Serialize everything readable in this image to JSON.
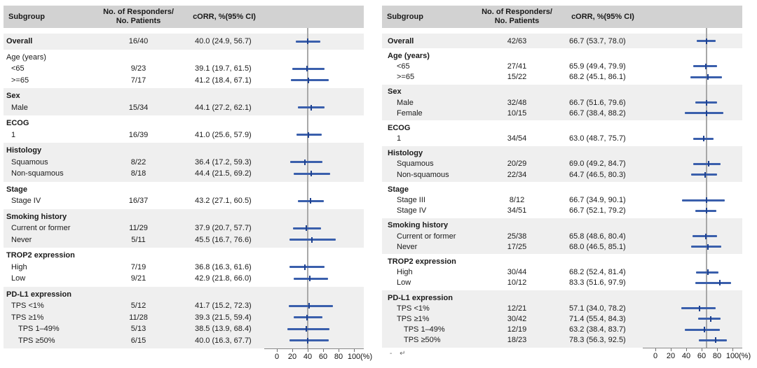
{
  "stray_mark": "- ↵",
  "chart_data": [
    {
      "panel": "left",
      "type": "forest",
      "columns": {
        "subgroup": "Subgroup",
        "responders": "No. of Responders/\nNo. Patients",
        "corr": "cORR, %(95% CI)"
      },
      "axis": {
        "ticks": [
          0,
          20,
          40,
          60,
          80,
          100
        ],
        "unit": "(%)",
        "xlim": [
          0,
          100
        ]
      },
      "ref_line": 40.0,
      "sections": [
        {
          "label": "Overall",
          "bold": true,
          "band": "gray",
          "data": {
            "n": "16/40",
            "ci": "40.0 (24.9, 56.7)",
            "est": 40.0,
            "lo": 24.9,
            "hi": 56.7
          }
        },
        {
          "label": "Age (years)",
          "bold": false,
          "band": "white",
          "items": [
            {
              "label": "<65",
              "n": "9/23",
              "ci": "39.1 (19.7, 61.5)",
              "est": 39.1,
              "lo": 19.7,
              "hi": 61.5
            },
            {
              "label": ">=65",
              "n": "7/17",
              "ci": "41.2 (18.4, 67.1)",
              "est": 41.2,
              "lo": 18.4,
              "hi": 67.1
            }
          ]
        },
        {
          "label": "Sex",
          "bold": true,
          "band": "gray",
          "items": [
            {
              "label": "Male",
              "n": "15/34",
              "ci": "44.1 (27.2, 62.1)",
              "est": 44.1,
              "lo": 27.2,
              "hi": 62.1
            }
          ]
        },
        {
          "label": "ECOG",
          "bold": true,
          "band": "white",
          "items": [
            {
              "label": "1",
              "n": "16/39",
              "ci": "41.0 (25.6, 57.9)",
              "est": 41.0,
              "lo": 25.6,
              "hi": 57.9
            }
          ]
        },
        {
          "label": "Histology",
          "bold": true,
          "band": "gray",
          "items": [
            {
              "label": "Squamous",
              "n": "8/22",
              "ci": "36.4 (17.2, 59.3)",
              "est": 36.4,
              "lo": 17.2,
              "hi": 59.3
            },
            {
              "label": "Non-squamous",
              "n": "8/18",
              "ci": "44.4 (21.5, 69.2)",
              "est": 44.4,
              "lo": 21.5,
              "hi": 69.2
            }
          ]
        },
        {
          "label": "Stage",
          "bold": true,
          "band": "white",
          "items": [
            {
              "label": "Stage IV",
              "n": "16/37",
              "ci": "43.2 (27.1, 60.5)",
              "est": 43.2,
              "lo": 27.1,
              "hi": 60.5
            }
          ]
        },
        {
          "label": "Smoking history",
          "bold": true,
          "band": "gray",
          "items": [
            {
              "label": "Current or former",
              "n": "11/29",
              "ci": "37.9 (20.7, 57.7)",
              "est": 37.9,
              "lo": 20.7,
              "hi": 57.7
            },
            {
              "label": "Never",
              "n": "5/11",
              "ci": "45.5 (16.7, 76.6)",
              "est": 45.5,
              "lo": 16.7,
              "hi": 76.6
            }
          ]
        },
        {
          "label": "TROP2 expression",
          "bold": true,
          "band": "white",
          "items": [
            {
              "label": "High",
              "n": "7/19",
              "ci": "36.8 (16.3, 61.6)",
              "est": 36.8,
              "lo": 16.3,
              "hi": 61.6
            },
            {
              "label": "Low",
              "n": "9/21",
              "ci": "42.9 (21.8, 66.0)",
              "est": 42.9,
              "lo": 21.8,
              "hi": 66.0
            }
          ]
        },
        {
          "label": "PD-L1 expression",
          "bold": true,
          "band": "gray",
          "items": [
            {
              "label": "TPS <1%",
              "n": "5/12",
              "ci": "41.7 (15.2, 72.3)",
              "est": 41.7,
              "lo": 15.2,
              "hi": 72.3
            },
            {
              "label": "TPS ≥1%",
              "n": "11/28",
              "ci": "39.3 (21.5, 59.4)",
              "est": 39.3,
              "lo": 21.5,
              "hi": 59.4
            },
            {
              "label": "TPS 1–49%",
              "indent": 2,
              "n": "5/13",
              "ci": "38.5 (13.9, 68.4)",
              "est": 38.5,
              "lo": 13.9,
              "hi": 68.4
            },
            {
              "label": "TPS ≥50%",
              "indent": 2,
              "n": "6/15",
              "ci": "40.0 (16.3, 67.7)",
              "est": 40.0,
              "lo": 16.3,
              "hi": 67.7
            }
          ]
        }
      ]
    },
    {
      "panel": "right",
      "type": "forest",
      "columns": {
        "subgroup": "Subgroup",
        "responders": "No. of Responders/\nNo. Patients",
        "corr": "cORR, %(95% CI)"
      },
      "axis": {
        "ticks": [
          0,
          20,
          40,
          60,
          80,
          100
        ],
        "unit": "(%)",
        "xlim": [
          0,
          100
        ]
      },
      "ref_line": 66.7,
      "sections": [
        {
          "label": "Overall",
          "bold": true,
          "band": "gray",
          "data": {
            "n": "42/63",
            "ci": "66.7 (53.7, 78.0)",
            "est": 66.7,
            "lo": 53.7,
            "hi": 78.0
          }
        },
        {
          "label": "Age (years)",
          "bold": true,
          "band": "white",
          "items": [
            {
              "label": "<65",
              "n": "27/41",
              "ci": "65.9 (49.4, 79.9)",
              "est": 65.9,
              "lo": 49.4,
              "hi": 79.9
            },
            {
              "label": ">=65",
              "n": "15/22",
              "ci": "68.2 (45.1, 86.1)",
              "est": 68.2,
              "lo": 45.1,
              "hi": 86.1
            }
          ]
        },
        {
          "label": "Sex",
          "bold": true,
          "band": "gray",
          "items": [
            {
              "label": "Male",
              "n": "32/48",
              "ci": "66.7 (51.6, 79.6)",
              "est": 66.7,
              "lo": 51.6,
              "hi": 79.6
            },
            {
              "label": "Female",
              "n": "10/15",
              "ci": "66.7 (38.4, 88.2)",
              "est": 66.7,
              "lo": 38.4,
              "hi": 88.2
            }
          ]
        },
        {
          "label": "ECOG",
          "bold": true,
          "band": "white",
          "items": [
            {
              "label": "1",
              "n": "34/54",
              "ci": "63.0 (48.7, 75.7)",
              "est": 63.0,
              "lo": 48.7,
              "hi": 75.7
            }
          ]
        },
        {
          "label": "Histology",
          "bold": true,
          "band": "gray",
          "items": [
            {
              "label": "Squamous",
              "n": "20/29",
              "ci": "69.0 (49.2, 84.7)",
              "est": 69.0,
              "lo": 49.2,
              "hi": 84.7
            },
            {
              "label": "Non-squamous",
              "n": "22/34",
              "ci": "64.7 (46.5, 80.3)",
              "est": 64.7,
              "lo": 46.5,
              "hi": 80.3
            }
          ]
        },
        {
          "label": "Stage",
          "bold": true,
          "band": "white",
          "items": [
            {
              "label": "Stage III",
              "n": "8/12",
              "ci": "66.7 (34.9, 90.1)",
              "est": 66.7,
              "lo": 34.9,
              "hi": 90.1
            },
            {
              "label": "Stage IV",
              "n": "34/51",
              "ci": "66.7 (52.1, 79.2)",
              "est": 66.7,
              "lo": 52.1,
              "hi": 79.2
            }
          ]
        },
        {
          "label": "Smoking history",
          "bold": true,
          "band": "gray",
          "items": [
            {
              "label": "Current or former",
              "n": "25/38",
              "ci": "65.8 (48.6, 80.4)",
              "est": 65.8,
              "lo": 48.6,
              "hi": 80.4
            },
            {
              "label": "Never",
              "n": "17/25",
              "ci": "68.0 (46.5, 85.1)",
              "est": 68.0,
              "lo": 46.5,
              "hi": 85.1
            }
          ]
        },
        {
          "label": "TROP2 expression",
          "bold": true,
          "band": "white",
          "items": [
            {
              "label": "High",
              "n": "30/44",
              "ci": "68.2 (52.4, 81.4)",
              "est": 68.2,
              "lo": 52.4,
              "hi": 81.4
            },
            {
              "label": "Low",
              "n": "10/12",
              "ci": "83.3 (51.6, 97.9)",
              "est": 83.3,
              "lo": 51.6,
              "hi": 97.9
            }
          ]
        },
        {
          "label": "PD-L1 expression",
          "bold": true,
          "band": "gray",
          "items": [
            {
              "label": "TPS <1%",
              "n": "12/21",
              "ci": "57.1 (34.0, 78.2)",
              "est": 57.1,
              "lo": 34.0,
              "hi": 78.2
            },
            {
              "label": "TPS ≥1%",
              "n": "30/42",
              "ci": "71.4 (55.4, 84.3)",
              "est": 71.4,
              "lo": 55.4,
              "hi": 84.3
            },
            {
              "label": "TPS 1–49%",
              "indent": 2,
              "n": "12/19",
              "ci": "63.2 (38.4, 83.7)",
              "est": 63.2,
              "lo": 38.4,
              "hi": 83.7
            },
            {
              "label": "TPS ≥50%",
              "indent": 2,
              "n": "18/23",
              "ci": "78.3 (56.3, 92.5)",
              "est": 78.3,
              "lo": 56.3,
              "hi": 92.5
            }
          ]
        }
      ]
    }
  ]
}
